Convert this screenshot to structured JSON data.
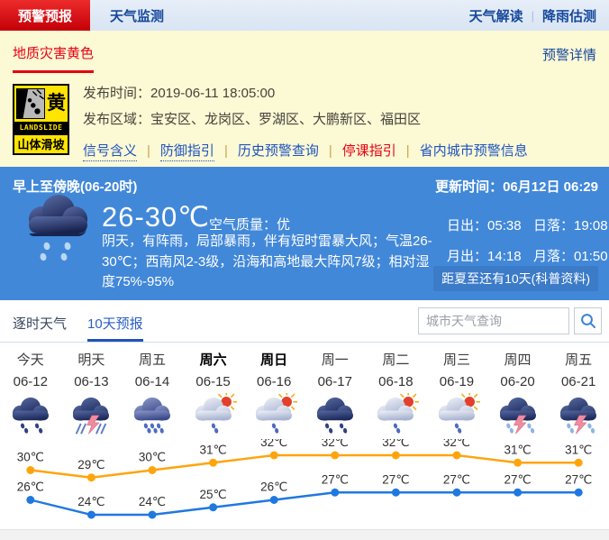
{
  "colors": {
    "alert_red": "#e60012",
    "nav_blue": "#16489c",
    "panel_blue": "#4288d9",
    "warning_yellow": "#ffe400",
    "high_line": "#ffa40d",
    "low_line": "#1f78e0",
    "label_dark": "#2f2f2f"
  },
  "topnav": {
    "tabs": [
      {
        "label": "预警预报",
        "active": true
      },
      {
        "label": "天气监测",
        "active": false
      }
    ],
    "links": [
      "天气解读",
      "降雨估测"
    ]
  },
  "alert": {
    "title": "地质灾害黄色",
    "detail_link": "预警详情",
    "badge": {
      "level_char": "黄",
      "type_en": "LANDSLIDE",
      "type_cn": "山体滑坡"
    },
    "publish_time_label": "发布时间：",
    "publish_time": "2019-06-11 18:05:00",
    "area_label": "发布区域：",
    "area": "宝安区、龙岗区、罗湖区、大鹏新区、福田区",
    "links": [
      {
        "label": "信号含义",
        "underline": "dotted",
        "color": "blue"
      },
      {
        "label": "防御指引",
        "underline": "dotted",
        "color": "blue"
      },
      {
        "label": "历史预警查询",
        "underline": "none",
        "color": "blue"
      },
      {
        "label": "停课指引",
        "underline": "none",
        "color": "red"
      },
      {
        "label": "省内城市预警信息",
        "underline": "none",
        "color": "blue"
      }
    ]
  },
  "current": {
    "period": "早上至傍晚(06-20时)",
    "update_label": "更新时间：",
    "update_time": "06月12日 06:29",
    "temp_range": "26-30℃",
    "air_label": "空气质量：",
    "air_value": "优",
    "description": "阴天，有阵雨，局部暴雨，伴有短时雷暴大风；气温26-30℃；西南风2-3级，沿海和高地最大阵风7级；相对湿度75%-95%",
    "sun": [
      {
        "label": "日出：",
        "value": "05:38"
      },
      {
        "label": "日落：",
        "value": "19:08"
      },
      {
        "label": "月出：",
        "value": "14:18"
      },
      {
        "label": "月落：",
        "value": "01:50"
      }
    ],
    "solstice_note": "距夏至还有10天(科普资料)"
  },
  "tabs": {
    "hourly": "逐时天气",
    "ten_day": "10天预报"
  },
  "search": {
    "placeholder": "城市天气查询"
  },
  "chart_data": {
    "type": "line",
    "unit": "℃",
    "ylim": [
      24,
      32
    ],
    "days": [
      {
        "label": "今天",
        "date": "06-12",
        "bold": false,
        "icon": "rain"
      },
      {
        "label": "明天",
        "date": "06-13",
        "bold": false,
        "icon": "thunderstorm-heavy"
      },
      {
        "label": "周五",
        "date": "06-14",
        "bold": false,
        "icon": "heavy-rain"
      },
      {
        "label": "周六",
        "date": "06-15",
        "bold": true,
        "icon": "sun-shower"
      },
      {
        "label": "周日",
        "date": "06-16",
        "bold": true,
        "icon": "sun-shower"
      },
      {
        "label": "周一",
        "date": "06-17",
        "bold": false,
        "icon": "rain"
      },
      {
        "label": "周二",
        "date": "06-18",
        "bold": false,
        "icon": "sun-shower"
      },
      {
        "label": "周三",
        "date": "06-19",
        "bold": false,
        "icon": "sun-shower"
      },
      {
        "label": "周四",
        "date": "06-20",
        "bold": false,
        "icon": "thunderstorm"
      },
      {
        "label": "周五",
        "date": "06-21",
        "bold": false,
        "icon": "thunderstorm"
      }
    ],
    "series": [
      {
        "name": "high",
        "values": [
          30,
          29,
          30,
          31,
          32,
          32,
          32,
          32,
          31,
          31
        ]
      },
      {
        "name": "low",
        "values": [
          26,
          24,
          24,
          25,
          26,
          27,
          27,
          27,
          27,
          27
        ]
      }
    ]
  }
}
